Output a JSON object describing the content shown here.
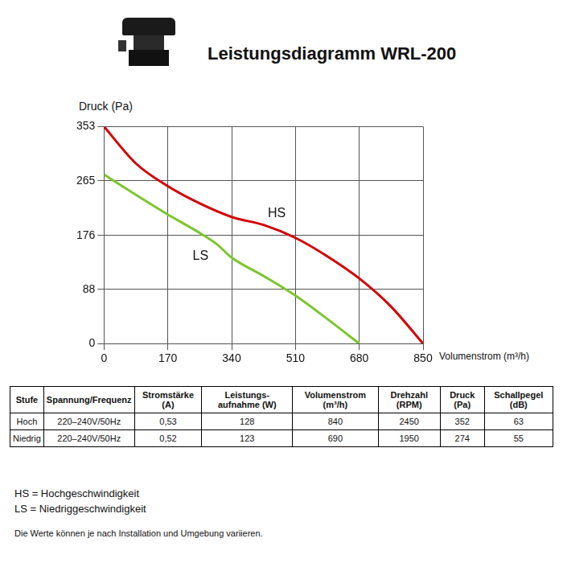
{
  "header": {
    "title": "Leistungsdiagramm WRL-200"
  },
  "chart_data": {
    "type": "line",
    "x_label": "Volumenstrom (m³/h)",
    "y_label": "Druck (Pa)",
    "xlim": [
      0,
      850
    ],
    "xticks": [
      0,
      170,
      340,
      510,
      680,
      850
    ],
    "ylim": [
      0,
      353
    ],
    "yticks": [
      0,
      88,
      176,
      265,
      353
    ],
    "grid": true,
    "series": [
      {
        "name": "HS",
        "color": "#d40000",
        "x": [
          0,
          85,
          170,
          255,
          340,
          425,
          510,
          595,
          680,
          765,
          850
        ],
        "values": [
          353,
          293,
          256,
          228,
          206,
          193,
          172,
          142,
          106,
          60,
          0
        ]
      },
      {
        "name": "LS",
        "color": "#7cc62d",
        "x": [
          0,
          85,
          170,
          255,
          300,
          340,
          425,
          510,
          595,
          680
        ],
        "values": [
          275,
          242,
          210,
          180,
          162,
          140,
          110,
          78,
          40,
          0
        ]
      }
    ],
    "annotations": [
      {
        "text": "HS",
        "x": 460,
        "y": 212
      },
      {
        "text": "LS",
        "x": 257,
        "y": 142
      }
    ]
  },
  "table": {
    "columns": [
      "Stufe",
      "Spannung/Frequenz",
      "Stromstärke (A)",
      "Leistungs-aufnahme (W)",
      "Volumenstrom (m³/h)",
      "Drehzahl (RPM)",
      "Druck (Pa)",
      "Schallpegel (dB)"
    ],
    "rows": [
      [
        "Hoch",
        "220–240V/50Hz",
        "0,53",
        "128",
        "840",
        "2450",
        "352",
        "63"
      ],
      [
        "Niedrig",
        "220–240V/50Hz",
        "0,52",
        "123",
        "690",
        "1950",
        "274",
        "55"
      ]
    ]
  },
  "notes": [
    "HS = Hochgeschwindigkeit",
    "LS = Niedriggeschwindigkeit",
    "Die Werte können je nach Installation und Umgebung variieren."
  ]
}
